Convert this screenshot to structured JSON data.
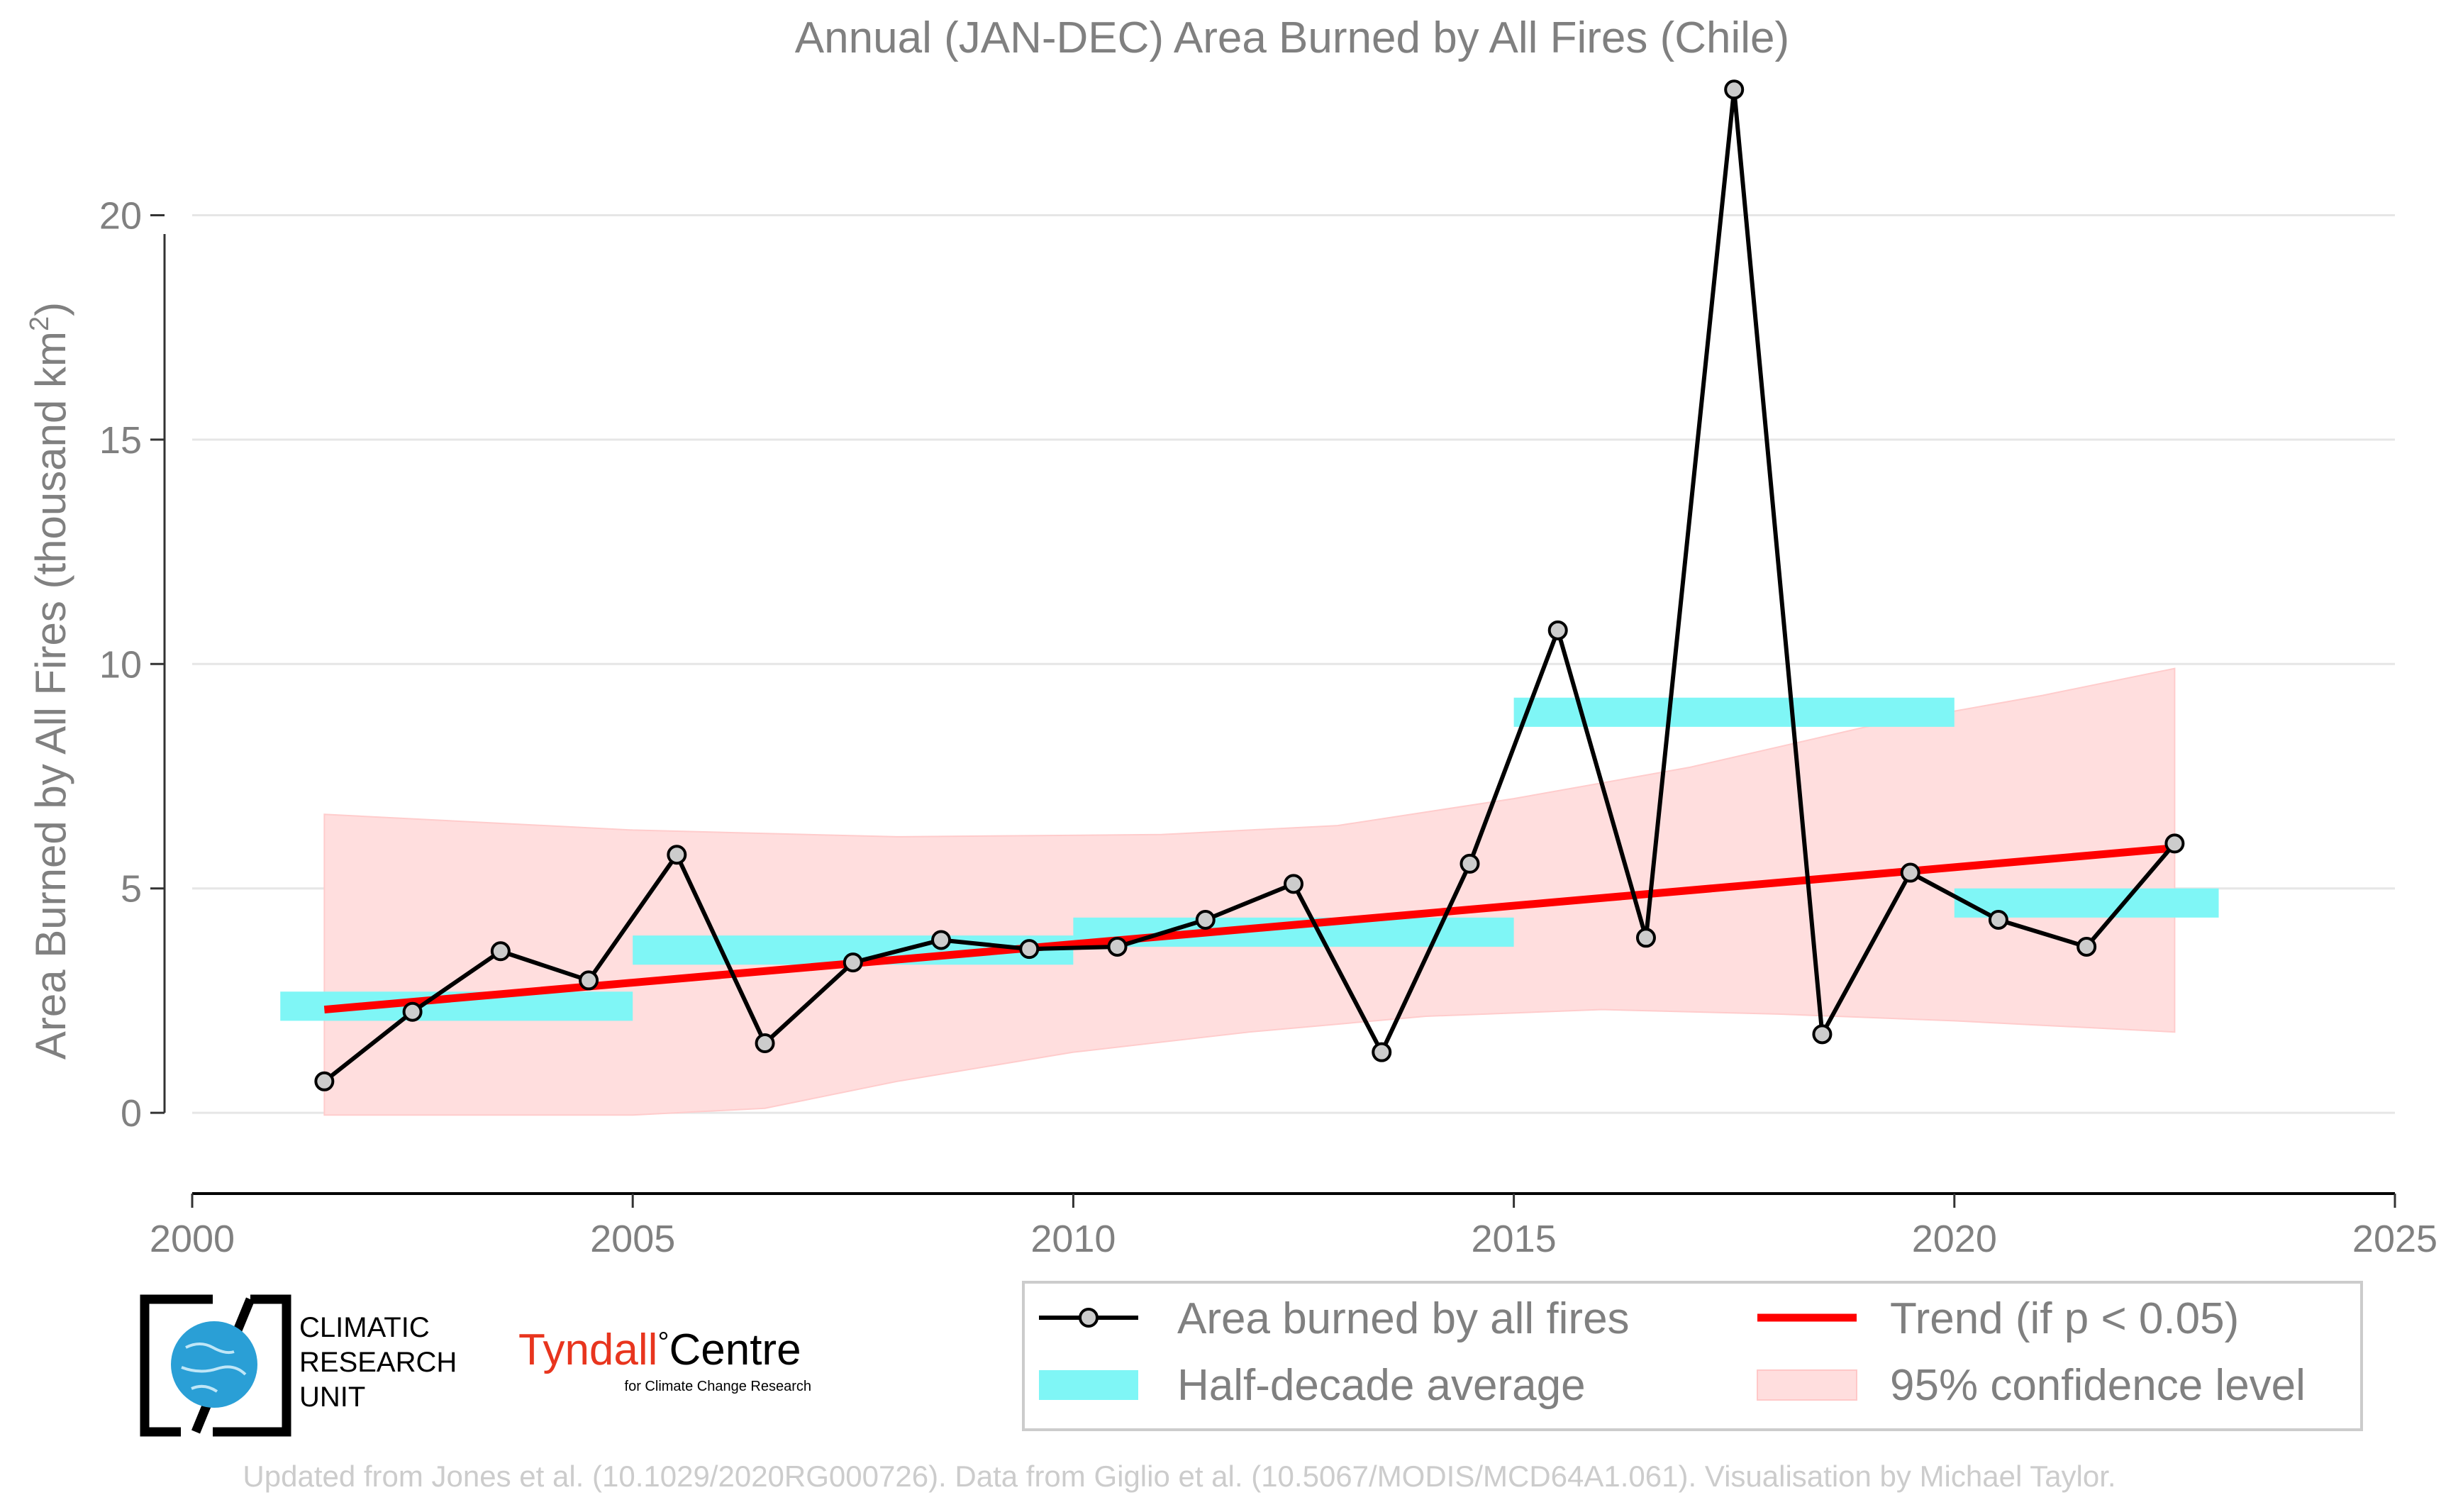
{
  "chart_data": {
    "type": "line",
    "title": "Annual (JAN-DEC) Area Burned by All Fires (Chile)",
    "ylabel": "Area Burned by All Fires (thousand km",
    "ylabel_sup": "2",
    "ylabel_close": ")",
    "xlim": [
      2000,
      2025
    ],
    "ylim": [
      -1.8,
      23.5
    ],
    "x_ticks": [
      2000,
      2005,
      2010,
      2015,
      2020,
      2025
    ],
    "y_ticks": [
      0,
      5,
      10,
      15,
      20
    ],
    "grid": "horizontal",
    "series": [
      {
        "name": "Area burned by all fires",
        "color": "#000000",
        "marker_fill": "#cccccc",
        "points": [
          {
            "x": 2001.5,
            "y": 0.7
          },
          {
            "x": 2002.5,
            "y": 2.25
          },
          {
            "x": 2003.5,
            "y": 3.6
          },
          {
            "x": 2004.5,
            "y": 2.95
          },
          {
            "x": 2005.5,
            "y": 5.75
          },
          {
            "x": 2006.5,
            "y": 1.55
          },
          {
            "x": 2007.5,
            "y": 3.35
          },
          {
            "x": 2008.5,
            "y": 3.85
          },
          {
            "x": 2009.5,
            "y": 3.65
          },
          {
            "x": 2010.5,
            "y": 3.7
          },
          {
            "x": 2011.5,
            "y": 4.3
          },
          {
            "x": 2012.5,
            "y": 5.1
          },
          {
            "x": 2013.5,
            "y": 1.35
          },
          {
            "x": 2014.5,
            "y": 5.55
          },
          {
            "x": 2015.5,
            "y": 10.75
          },
          {
            "x": 2016.5,
            "y": 3.9
          },
          {
            "x": 2017.5,
            "y": 22.8
          },
          {
            "x": 2018.5,
            "y": 1.75
          },
          {
            "x": 2019.5,
            "y": 5.35
          },
          {
            "x": 2020.5,
            "y": 4.3
          },
          {
            "x": 2021.5,
            "y": 3.7
          },
          {
            "x": 2022.5,
            "y": 6.0
          }
        ]
      },
      {
        "name": "Half-decade average",
        "color": "#7ff6f6",
        "segments": [
          {
            "x0": 2001.0,
            "x1": 2005.0,
            "y0": 2.05,
            "y1": 2.7
          },
          {
            "x0": 2005.0,
            "x1": 2010.0,
            "y0": 3.3,
            "y1": 3.95
          },
          {
            "x0": 2010.0,
            "x1": 2015.0,
            "y0": 3.7,
            "y1": 4.35
          },
          {
            "x0": 2015.0,
            "x1": 2020.0,
            "y0": 8.6,
            "y1": 9.25
          },
          {
            "x0": 2020.0,
            "x1": 2023.0,
            "y0": 4.35,
            "y1": 5.0
          }
        ]
      },
      {
        "name": "Trend (if p < 0.05)",
        "color": "#ff0000",
        "start": {
          "x": 2001.5,
          "y": 2.3
        },
        "end": {
          "x": 2022.5,
          "y": 5.9
        }
      },
      {
        "name": "95% confidence level",
        "color": "#ffdede",
        "upper": [
          {
            "x": 2001.5,
            "y": 6.65
          },
          {
            "x": 2005.0,
            "y": 6.3
          },
          {
            "x": 2008.0,
            "y": 6.15
          },
          {
            "x": 2011.0,
            "y": 6.2
          },
          {
            "x": 2013.0,
            "y": 6.4
          },
          {
            "x": 2015.0,
            "y": 7.0
          },
          {
            "x": 2017.0,
            "y": 7.7
          },
          {
            "x": 2019.0,
            "y": 8.6
          },
          {
            "x": 2021.0,
            "y": 9.3
          },
          {
            "x": 2022.5,
            "y": 9.9
          }
        ],
        "lower": [
          {
            "x": 2001.5,
            "y": -0.05
          },
          {
            "x": 2005.0,
            "y": -0.05
          },
          {
            "x": 2006.5,
            "y": 0.1
          },
          {
            "x": 2008.0,
            "y": 0.7
          },
          {
            "x": 2010.0,
            "y": 1.35
          },
          {
            "x": 2012.0,
            "y": 1.8
          },
          {
            "x": 2014.0,
            "y": 2.15
          },
          {
            "x": 2016.0,
            "y": 2.3
          },
          {
            "x": 2018.0,
            "y": 2.2
          },
          {
            "x": 2020.0,
            "y": 2.05
          },
          {
            "x": 2022.5,
            "y": 1.8
          }
        ]
      }
    ],
    "legend": {
      "placement": "bottom-right",
      "items": [
        {
          "label": "Area burned by all fires",
          "kind": "line-marker",
          "color": "#000000"
        },
        {
          "label": "Trend (if p < 0.05)",
          "kind": "line",
          "color": "#ff0000"
        },
        {
          "label": "Half-decade average",
          "kind": "patch",
          "color": "#7ff6f6"
        },
        {
          "label": "95% confidence level",
          "kind": "patch",
          "color": "#ffdede"
        }
      ]
    }
  },
  "logos": {
    "cru_lines": [
      "CLIMATIC",
      "RESEARCH",
      "UNIT"
    ],
    "tyndall_name": "Tyndall",
    "tyndall_degree": "°",
    "tyndall_centre": "Centre",
    "tyndall_sub": "for Climate Change Research"
  },
  "footer": "Updated from Jones et al. (10.1029/2020RG000726). Data from Giglio et al. (10.5067/MODIS/MCD64A1.061). Visualisation by Michael Taylor."
}
